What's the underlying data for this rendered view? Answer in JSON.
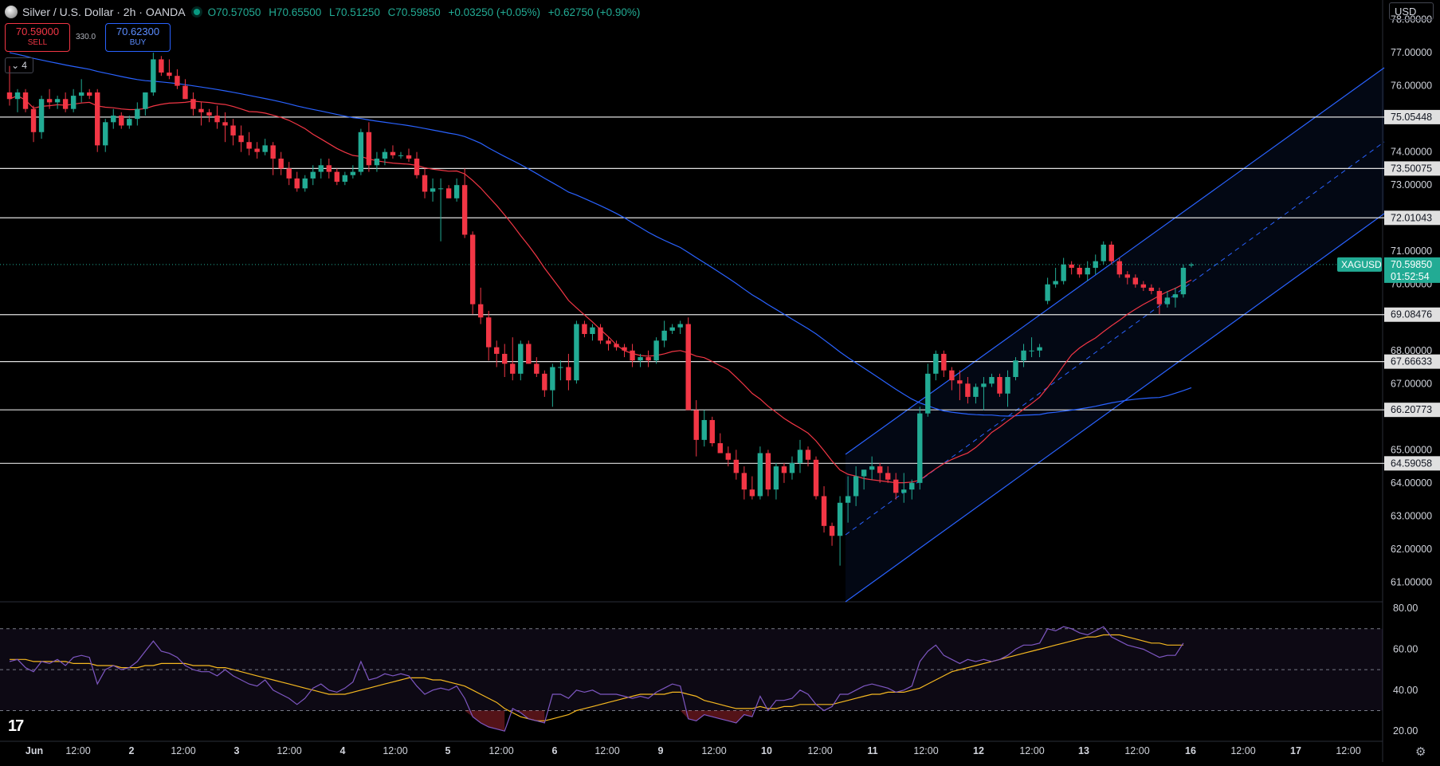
{
  "header": {
    "title": "Silver / U.S. Dollar · 2h · OANDA",
    "open": "O70.57050",
    "high": "H70.65500",
    "low": "L70.51250",
    "close": "C70.59850",
    "change": "+0.03250 (+0.05%)",
    "change2": "+0.62750 (+0.90%)"
  },
  "trade": {
    "sell_price": "70.59000",
    "sell_label": "SELL",
    "spread": "330.0",
    "buy_price": "70.62300",
    "buy_label": "BUY"
  },
  "collapse_count": "4",
  "currency": "USD",
  "logo_text": "17",
  "colors": {
    "up": "#22ab94",
    "down": "#f23645",
    "ma_red": "#f23645",
    "ma_blue": "#2962ff",
    "channel": "#2962ff",
    "rsi": "#7e57c2",
    "rsi_ma": "#f5b820",
    "level": "#e0e0e0"
  },
  "chart_data": [
    {
      "type": "candlestick",
      "title": "Silver / U.S. Dollar · 2h · OANDA",
      "symbol": "XAGUSD",
      "last_price": "70.59850",
      "countdown": "01:52:54",
      "ylim": [
        60.6,
        78.4
      ],
      "yticks": [
        "78.00000",
        "77.00000",
        "76.00000",
        "74.00000",
        "73.00000",
        "71.00000",
        "70.00000",
        "68.00000",
        "67.00000",
        "65.00000",
        "64.00000",
        "63.00000",
        "62.00000",
        "61.00000"
      ],
      "x_labels": [
        "Jun",
        "12:00",
        "2",
        "12:00",
        "3",
        "12:00",
        "4",
        "12:00",
        "5",
        "12:00",
        "6",
        "12:00",
        "9",
        "12:00",
        "10",
        "12:00",
        "11",
        "12:00",
        "12",
        "12:00",
        "13",
        "12:00",
        "16",
        "12:00",
        "17",
        "12:00"
      ],
      "horizontal_levels": [
        "75.05448",
        "73.50075",
        "72.01043",
        "69.08476",
        "67.66633",
        "66.20773",
        "64.59058"
      ],
      "candles": [
        [
          75.8,
          76.6,
          75.4,
          75.6
        ],
        [
          75.6,
          75.9,
          75.2,
          75.8
        ],
        [
          75.8,
          75.9,
          75.2,
          75.3
        ],
        [
          75.3,
          75.4,
          74.3,
          74.6
        ],
        [
          74.6,
          75.7,
          74.4,
          75.6
        ],
        [
          75.6,
          75.9,
          75.3,
          75.5
        ],
        [
          75.5,
          75.7,
          75.3,
          75.6
        ],
        [
          75.6,
          75.8,
          75.2,
          75.3
        ],
        [
          75.3,
          75.9,
          75.2,
          75.7
        ],
        [
          75.7,
          76.2,
          75.5,
          75.8
        ],
        [
          75.8,
          75.9,
          75.6,
          75.7
        ],
        [
          75.8,
          75.9,
          74.0,
          74.2
        ],
        [
          74.2,
          75.0,
          74.0,
          74.9
        ],
        [
          74.9,
          75.3,
          74.7,
          75.1
        ],
        [
          75.1,
          75.2,
          74.7,
          74.8
        ],
        [
          74.8,
          75.1,
          74.7,
          75.0
        ],
        [
          75.0,
          75.5,
          74.8,
          75.3
        ],
        [
          75.3,
          75.8,
          75.1,
          75.8
        ],
        [
          75.8,
          77.0,
          75.7,
          76.8
        ],
        [
          76.8,
          76.9,
          76.3,
          76.4
        ],
        [
          76.4,
          76.8,
          76.2,
          76.3
        ],
        [
          76.3,
          76.5,
          75.9,
          76.0
        ],
        [
          76.0,
          76.2,
          75.6,
          75.6
        ],
        [
          75.6,
          75.8,
          75.1,
          75.3
        ],
        [
          75.3,
          75.5,
          74.8,
          75.2
        ],
        [
          75.2,
          75.3,
          74.9,
          75.1
        ],
        [
          75.1,
          75.4,
          74.7,
          74.9
        ],
        [
          74.9,
          75.2,
          74.3,
          74.8
        ],
        [
          74.8,
          75.0,
          74.2,
          74.5
        ],
        [
          74.5,
          74.8,
          74.0,
          74.3
        ],
        [
          74.3,
          74.6,
          73.9,
          74.1
        ],
        [
          74.1,
          74.3,
          73.8,
          74.0
        ],
        [
          74.0,
          74.4,
          73.9,
          74.2
        ],
        [
          74.2,
          74.3,
          73.3,
          73.8
        ],
        [
          73.8,
          74.0,
          73.3,
          73.5
        ],
        [
          73.5,
          73.7,
          73.0,
          73.2
        ],
        [
          73.2,
          73.4,
          72.8,
          72.9
        ],
        [
          72.9,
          73.3,
          72.8,
          73.2
        ],
        [
          73.2,
          73.6,
          73.0,
          73.4
        ],
        [
          73.4,
          73.8,
          73.2,
          73.6
        ],
        [
          73.6,
          73.8,
          73.2,
          73.4
        ],
        [
          73.4,
          73.5,
          73.0,
          73.1
        ],
        [
          73.1,
          73.4,
          73.0,
          73.3
        ],
        [
          73.3,
          73.6,
          73.2,
          73.4
        ],
        [
          73.4,
          74.7,
          73.3,
          74.6
        ],
        [
          74.6,
          74.9,
          73.4,
          73.6
        ],
        [
          73.6,
          74.0,
          73.4,
          73.8
        ],
        [
          73.8,
          74.1,
          73.6,
          74.0
        ],
        [
          74.0,
          74.2,
          73.8,
          73.9
        ],
        [
          73.9,
          74.0,
          73.8,
          73.9
        ],
        [
          73.9,
          74.1,
          73.7,
          73.8
        ],
        [
          73.8,
          74.0,
          73.2,
          73.3
        ],
        [
          73.3,
          73.5,
          72.6,
          72.8
        ],
        [
          72.8,
          73.2,
          72.5,
          72.9
        ],
        [
          72.9,
          73.2,
          71.3,
          72.9
        ],
        [
          72.9,
          73.0,
          72.6,
          72.6
        ],
        [
          72.6,
          73.2,
          72.5,
          73.0
        ],
        [
          73.0,
          73.5,
          71.4,
          71.5
        ],
        [
          71.5,
          71.6,
          69.1,
          69.4
        ],
        [
          69.4,
          69.9,
          68.8,
          69.0
        ],
        [
          69.0,
          69.2,
          67.7,
          68.1
        ],
        [
          68.1,
          68.3,
          67.5,
          67.9
        ],
        [
          67.9,
          68.2,
          67.2,
          67.6
        ],
        [
          67.6,
          68.4,
          67.1,
          67.3
        ],
        [
          67.3,
          68.3,
          67.1,
          68.2
        ],
        [
          68.2,
          68.3,
          67.6,
          67.6
        ],
        [
          67.6,
          67.8,
          67.2,
          67.3
        ],
        [
          67.3,
          67.4,
          66.6,
          66.8
        ],
        [
          66.8,
          67.6,
          66.3,
          67.5
        ],
        [
          67.5,
          67.7,
          67.1,
          67.5
        ],
        [
          67.5,
          67.9,
          66.8,
          67.1
        ],
        [
          67.1,
          68.9,
          67.0,
          68.8
        ],
        [
          68.8,
          68.9,
          68.4,
          68.5
        ],
        [
          68.5,
          68.8,
          68.3,
          68.7
        ],
        [
          68.7,
          68.8,
          68.2,
          68.3
        ],
        [
          68.3,
          68.4,
          68.0,
          68.2
        ],
        [
          68.2,
          68.3,
          68.0,
          68.1
        ],
        [
          68.1,
          68.2,
          67.8,
          68.0
        ],
        [
          68.0,
          68.2,
          67.5,
          67.7
        ],
        [
          67.7,
          67.9,
          67.5,
          67.8
        ],
        [
          67.8,
          68.0,
          67.5,
          67.7
        ],
        [
          67.7,
          68.4,
          67.6,
          68.3
        ],
        [
          68.3,
          68.9,
          68.1,
          68.6
        ],
        [
          68.6,
          68.8,
          68.5,
          68.7
        ],
        [
          68.7,
          68.9,
          68.5,
          68.8
        ],
        [
          68.8,
          69.0,
          66.2,
          66.2
        ],
        [
          66.2,
          66.5,
          64.8,
          65.3
        ],
        [
          65.3,
          66.2,
          65.1,
          65.9
        ],
        [
          65.9,
          66.0,
          65.1,
          65.2
        ],
        [
          65.2,
          65.5,
          64.9,
          64.9
        ],
        [
          64.9,
          65.1,
          64.5,
          64.7
        ],
        [
          64.7,
          65.0,
          64.1,
          64.3
        ],
        [
          64.3,
          64.5,
          63.5,
          63.8
        ],
        [
          63.8,
          64.2,
          63.5,
          63.6
        ],
        [
          63.6,
          65.1,
          63.5,
          64.9
        ],
        [
          64.9,
          65.0,
          63.6,
          63.8
        ],
        [
          63.8,
          64.6,
          63.5,
          64.5
        ],
        [
          64.5,
          64.6,
          64.0,
          64.3
        ],
        [
          64.3,
          64.8,
          64.1,
          64.6
        ],
        [
          64.6,
          65.3,
          64.3,
          65.0
        ],
        [
          65.0,
          65.1,
          64.5,
          64.7
        ],
        [
          64.7,
          64.8,
          63.5,
          63.6
        ],
        [
          63.6,
          63.9,
          62.5,
          62.7
        ],
        [
          62.7,
          62.8,
          62.1,
          62.4
        ],
        [
          62.4,
          63.6,
          61.5,
          63.4
        ],
        [
          63.4,
          64.2,
          62.8,
          63.6
        ],
        [
          63.6,
          64.5,
          63.3,
          64.2
        ],
        [
          64.2,
          64.4,
          63.8,
          64.4
        ],
        [
          64.4,
          64.8,
          64.1,
          64.5
        ],
        [
          64.5,
          64.6,
          64.0,
          64.3
        ],
        [
          64.3,
          64.5,
          64.0,
          64.1
        ],
        [
          64.1,
          64.3,
          63.5,
          63.7
        ],
        [
          63.7,
          64.3,
          63.4,
          63.8
        ],
        [
          63.8,
          64.1,
          63.5,
          64.0
        ],
        [
          64.0,
          66.3,
          63.8,
          66.1
        ],
        [
          66.1,
          67.6,
          66.0,
          67.3
        ],
        [
          67.3,
          68.0,
          67.1,
          67.9
        ],
        [
          67.9,
          68.0,
          67.2,
          67.4
        ],
        [
          67.4,
          67.5,
          66.8,
          67.1
        ],
        [
          67.1,
          67.4,
          66.5,
          67.0
        ],
        [
          67.0,
          67.2,
          66.4,
          66.6
        ],
        [
          66.6,
          67.0,
          66.4,
          66.9
        ],
        [
          66.9,
          67.2,
          66.2,
          67.0
        ],
        [
          67.0,
          67.3,
          66.9,
          67.2
        ],
        [
          67.2,
          67.3,
          66.6,
          66.7
        ],
        [
          66.7,
          67.4,
          66.3,
          67.2
        ],
        [
          67.2,
          67.8,
          67.1,
          67.7
        ],
        [
          67.7,
          68.2,
          67.5,
          68.0
        ],
        [
          68.0,
          68.4,
          67.8,
          68.0
        ],
        [
          68.0,
          68.2,
          67.8,
          68.1
        ],
        [
          69.5,
          70.2,
          69.4,
          70.0
        ],
        [
          70.0,
          70.5,
          69.9,
          70.1
        ],
        [
          70.1,
          70.8,
          70.0,
          70.6
        ],
        [
          70.6,
          70.7,
          70.3,
          70.5
        ],
        [
          70.5,
          70.6,
          70.2,
          70.3
        ],
        [
          70.3,
          70.7,
          70.1,
          70.5
        ],
        [
          70.5,
          70.9,
          70.3,
          70.7
        ],
        [
          70.7,
          71.3,
          70.6,
          71.2
        ],
        [
          71.2,
          71.3,
          70.6,
          70.7
        ],
        [
          70.7,
          70.8,
          70.2,
          70.3
        ],
        [
          70.3,
          70.4,
          70.0,
          70.2
        ],
        [
          70.2,
          70.3,
          69.9,
          70.0
        ],
        [
          70.0,
          70.1,
          69.8,
          69.9
        ],
        [
          69.9,
          70.0,
          69.7,
          69.8
        ],
        [
          69.8,
          69.9,
          69.1,
          69.4
        ],
        [
          69.4,
          69.8,
          69.3,
          69.6
        ],
        [
          69.6,
          69.9,
          69.3,
          69.7
        ],
        [
          69.7,
          70.6,
          69.6,
          70.5
        ],
        [
          70.57,
          70.655,
          70.5125,
          70.5985
        ]
      ]
    },
    {
      "type": "line",
      "title": "RSI",
      "ylim": [
        15,
        82
      ],
      "yticks": [
        "80.00",
        "60.00",
        "40.00",
        "20.00"
      ],
      "series": [
        {
          "color": "#7e57c2",
          "values": [
            54,
            55,
            51,
            49,
            54,
            53,
            55,
            52,
            56,
            57,
            56,
            43,
            50,
            52,
            50,
            51,
            54,
            59,
            64,
            59,
            58,
            56,
            52,
            50,
            49,
            49,
            47,
            50,
            47,
            45,
            43,
            42,
            45,
            40,
            38,
            36,
            33,
            36,
            41,
            43,
            40,
            39,
            41,
            44,
            54,
            45,
            46,
            48,
            47,
            48,
            47,
            42,
            38,
            40,
            41,
            40,
            42,
            36,
            27,
            24,
            22,
            21,
            20,
            31,
            29,
            26,
            25,
            24,
            38,
            38,
            36,
            40,
            39,
            40,
            38,
            38,
            38,
            37,
            36,
            37,
            36,
            39,
            41,
            43,
            42,
            26,
            25,
            28,
            27,
            26,
            25,
            24,
            28,
            27,
            37,
            30,
            35,
            35,
            36,
            40,
            38,
            33,
            30,
            32,
            38,
            38,
            40,
            42,
            43,
            42,
            41,
            39,
            40,
            42,
            54,
            59,
            62,
            57,
            55,
            53,
            55,
            54,
            55,
            54,
            55,
            57,
            60,
            62,
            62,
            63,
            70,
            69,
            71,
            70,
            68,
            67,
            69,
            71,
            66,
            64,
            62,
            61,
            60,
            58,
            56,
            57,
            57,
            63
          ]
        },
        {
          "color": "#f5b820",
          "values": [
            55,
            55,
            55,
            54,
            54,
            54,
            54,
            54,
            53,
            53,
            53,
            52,
            52,
            52,
            51,
            51,
            51,
            52,
            52,
            53,
            53,
            53,
            53,
            52,
            52,
            52,
            51,
            51,
            50,
            49,
            48,
            47,
            46,
            45,
            44,
            43,
            42,
            41,
            40,
            39,
            38,
            38,
            38,
            39,
            40,
            41,
            42,
            43,
            44,
            45,
            46,
            46,
            46,
            45,
            45,
            44,
            43,
            42,
            40,
            38,
            36,
            34,
            31,
            29,
            27,
            26,
            25,
            25,
            26,
            27,
            28,
            30,
            31,
            32,
            33,
            34,
            35,
            36,
            37,
            38,
            38,
            38,
            38,
            39,
            39,
            38,
            37,
            35,
            34,
            33,
            32,
            31,
            31,
            31,
            32,
            31,
            31,
            32,
            32,
            33,
            33,
            33,
            33,
            33,
            34,
            35,
            36,
            37,
            38,
            38,
            39,
            39,
            39,
            40,
            41,
            43,
            45,
            47,
            49,
            50,
            51,
            52,
            53,
            54,
            55,
            56,
            57,
            58,
            59,
            60,
            61,
            62,
            63,
            64,
            65,
            66,
            66,
            67,
            67,
            67,
            66,
            65,
            64,
            63,
            63,
            62,
            62,
            62
          ]
        }
      ]
    }
  ]
}
